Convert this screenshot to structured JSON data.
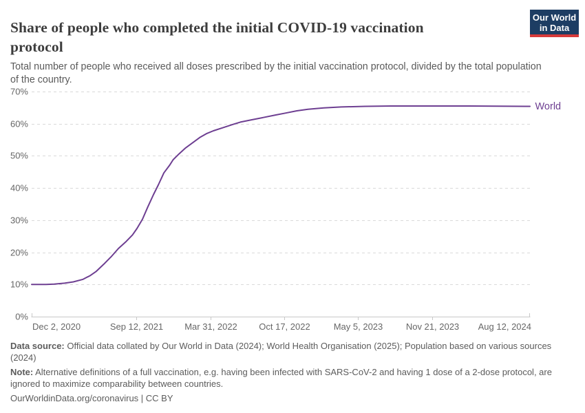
{
  "header": {
    "title_lines": [
      "Share of people who completed the initial COVID-19 vaccination",
      "protocol"
    ],
    "subtitle_lines": [
      "Total number of people who received all doses prescribed by the initial vaccination protocol, divided by the total population",
      "of the country."
    ],
    "logo": {
      "line1": "Our World",
      "line2": "in Data"
    }
  },
  "chart_data": {
    "type": "line",
    "title": "Share of people who completed the initial COVID-19 vaccination protocol",
    "xlabel": "",
    "ylabel": "",
    "ylim": [
      0,
      70
    ],
    "grid": "horizontal-dashed",
    "legend": "end-of-line-label",
    "y_ticks": [
      0,
      10,
      20,
      30,
      40,
      50,
      60,
      70
    ],
    "y_tick_labels": [
      "0%",
      "10%",
      "20%",
      "30%",
      "40%",
      "50%",
      "60%",
      "70%"
    ],
    "x_tick_labels": [
      "Dec 2, 2020",
      "Sep 12, 2021",
      "Mar 31, 2022",
      "Oct 17, 2022",
      "May 5, 2023",
      "Nov 21, 2023",
      "Aug 12, 2024"
    ],
    "x_tick_dates": [
      "2020-12-02",
      "2021-09-12",
      "2022-03-31",
      "2022-10-17",
      "2023-05-05",
      "2023-11-21",
      "2024-08-12"
    ],
    "series": [
      {
        "name": "World",
        "color": "#6d3e91",
        "points": [
          [
            "2020-12-02",
            10.0
          ],
          [
            "2020-12-20",
            10.0
          ],
          [
            "2021-01-10",
            10.0
          ],
          [
            "2021-02-01",
            10.1
          ],
          [
            "2021-03-01",
            10.4
          ],
          [
            "2021-03-25",
            10.8
          ],
          [
            "2021-04-20",
            11.6
          ],
          [
            "2021-05-10",
            12.8
          ],
          [
            "2021-05-25",
            14.0
          ],
          [
            "2021-06-15",
            16.3
          ],
          [
            "2021-07-05",
            18.6
          ],
          [
            "2021-07-25",
            21.2
          ],
          [
            "2021-08-15",
            23.4
          ],
          [
            "2021-09-01",
            25.4
          ],
          [
            "2021-09-13",
            27.4
          ],
          [
            "2021-09-28",
            30.3
          ],
          [
            "2021-10-12",
            34.0
          ],
          [
            "2021-10-28",
            38.0
          ],
          [
            "2021-11-10",
            41.0
          ],
          [
            "2021-11-25",
            44.7
          ],
          [
            "2021-12-10",
            47.0
          ],
          [
            "2021-12-20",
            48.8
          ],
          [
            "2022-01-05",
            50.6
          ],
          [
            "2022-01-23",
            52.5
          ],
          [
            "2022-02-10",
            54.0
          ],
          [
            "2022-03-02",
            55.7
          ],
          [
            "2022-03-20",
            56.9
          ],
          [
            "2022-04-08",
            57.8
          ],
          [
            "2022-05-05",
            58.8
          ],
          [
            "2022-06-01",
            59.8
          ],
          [
            "2022-06-20",
            60.5
          ],
          [
            "2022-07-20",
            61.2
          ],
          [
            "2022-08-20",
            61.9
          ],
          [
            "2022-09-23",
            62.7
          ],
          [
            "2022-10-20",
            63.3
          ],
          [
            "2022-11-20",
            64.0
          ],
          [
            "2022-12-20",
            64.5
          ],
          [
            "2023-02-01",
            64.9
          ],
          [
            "2023-03-20",
            65.2
          ],
          [
            "2023-05-23",
            65.4
          ],
          [
            "2023-08-01",
            65.5
          ],
          [
            "2023-11-21",
            65.5
          ],
          [
            "2024-03-01",
            65.5
          ],
          [
            "2024-08-12",
            65.4
          ]
        ]
      }
    ],
    "series_end_label": "World"
  },
  "footer": {
    "data_source": {
      "label": "Data source:",
      "line1": " Official data collated by Our World in Data (2024); World Health Organisation (2025); Population based on various sources",
      "line2": "(2024)"
    },
    "note": {
      "label": "Note:",
      "line1": " Alternative definitions of a full vaccination, e.g. having been infected with SARS-CoV-2 and having 1 dose of a 2-dose protocol, are",
      "line2": "ignored to maximize comparability between countries."
    },
    "license": {
      "url_text": "OurWorldinData.org/coronavirus",
      "suffix": " | CC BY"
    }
  },
  "colors": {
    "line": "#6d3e91",
    "series_label": "#6d3e91",
    "grid": "#d9d9d9",
    "axis": "#c8c8c8",
    "tick_text": "#666666",
    "title_text": "#3d3d3d",
    "subtitle_text": "#5a5a5a",
    "footer_text": "#5b5b5b",
    "logo_bg": "#1d3d63",
    "logo_accent": "#d73a3a"
  }
}
